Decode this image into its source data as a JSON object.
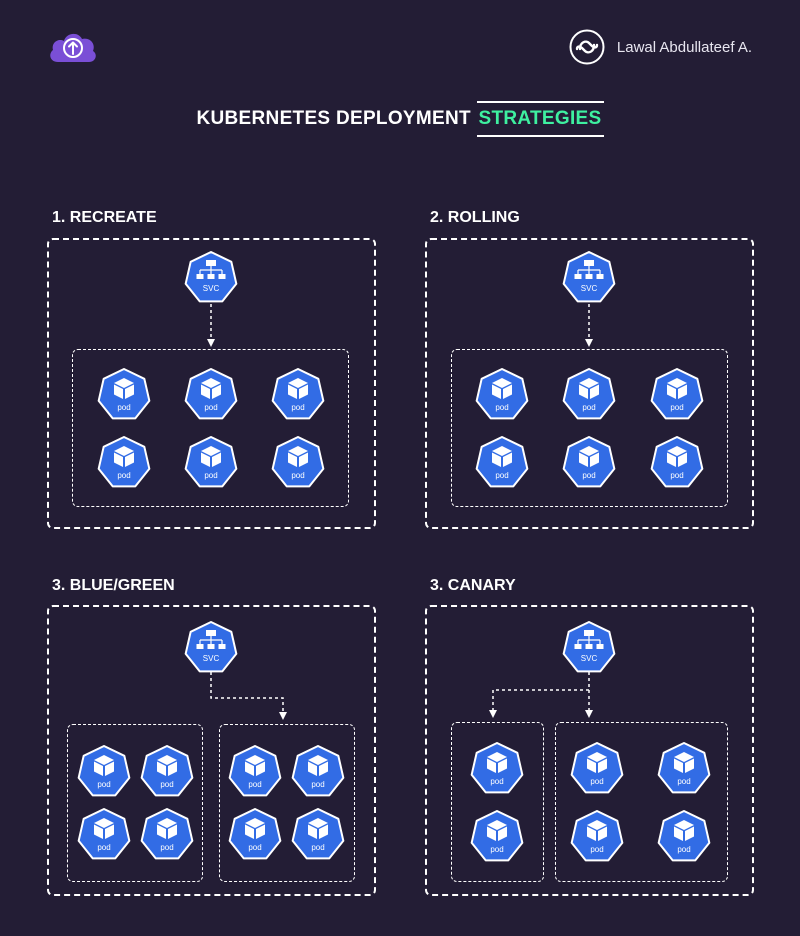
{
  "header": {
    "logo_icon": "cloud-upload-icon",
    "author_icon": "refresh-loop-icon",
    "author_name": "Lawal Abdullateef A."
  },
  "title": {
    "main": "KUBERNETES DEPLOYMENT ",
    "highlight": "STRATEGIES",
    "highlight_color": "#3ef0a0"
  },
  "colors": {
    "background": "#231d35",
    "node_fill": "#326ce5",
    "node_stroke": "#ffffff"
  },
  "labels": {
    "service": "SVC",
    "pod": "pod"
  },
  "sections": [
    {
      "title": "1. RECREATE"
    },
    {
      "title": "2. ROLLING"
    },
    {
      "title": "3. BLUE/GREEN"
    },
    {
      "title": "3. CANARY"
    }
  ]
}
